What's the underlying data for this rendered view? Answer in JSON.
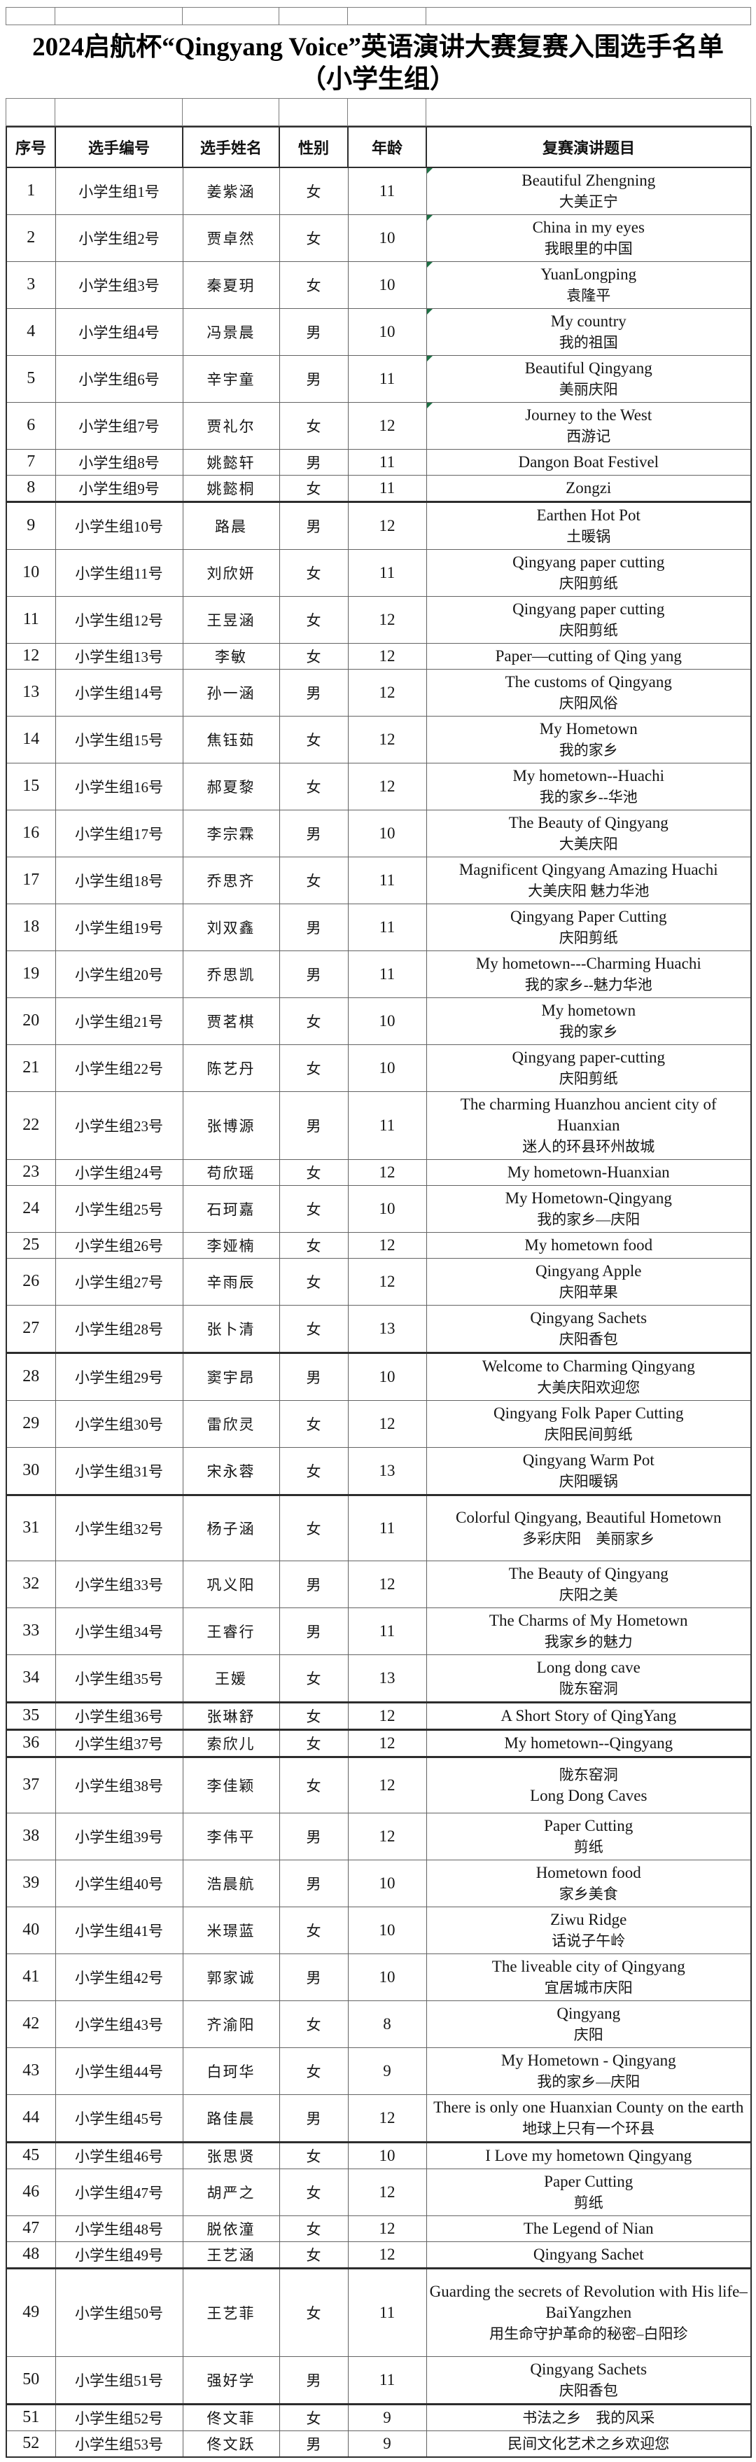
{
  "title": {
    "line1": "2024启航杯“Qingyang Voice”英语演讲大赛复赛入围选手名单",
    "line2": "（小学生组）"
  },
  "colors": {
    "marker_green": "#1e7145",
    "border_thin": "#636363",
    "border_thick": "#2e2e2e",
    "text": "#151515"
  },
  "table": {
    "headers": [
      "序号",
      "选手编号",
      "选手姓名",
      "性别",
      "年龄",
      "复赛演讲题目"
    ],
    "rows": [
      {
        "no": "1",
        "id": "小学生组1号",
        "name": "姜紫涵",
        "gender": "女",
        "age": "11",
        "topic": [
          "Beautiful Zhengning",
          "大美正宁"
        ],
        "marker": true
      },
      {
        "no": "2",
        "id": "小学生组2号",
        "name": "贾卓然",
        "gender": "女",
        "age": "10",
        "topic": [
          "China in my eyes",
          "我眼里的中国"
        ],
        "marker": true
      },
      {
        "no": "3",
        "id": "小学生组3号",
        "name": "秦夏玥",
        "gender": "女",
        "age": "10",
        "topic": [
          "YuanLongping",
          "袁隆平"
        ],
        "marker": true
      },
      {
        "no": "4",
        "id": "小学生组4号",
        "name": "冯景晨",
        "gender": "男",
        "age": "10",
        "topic": [
          "My country",
          "我的祖国"
        ],
        "marker": true
      },
      {
        "no": "5",
        "id": "小学生组6号",
        "name": "辛宇童",
        "gender": "男",
        "age": "11",
        "topic": [
          "Beautiful  Qingyang",
          "美丽庆阳"
        ],
        "marker": true
      },
      {
        "no": "6",
        "id": "小学生组7号",
        "name": "贾礼尔",
        "gender": "女",
        "age": "12",
        "topic": [
          "Journey to the West",
          "西游记"
        ],
        "marker": true
      },
      {
        "no": "7",
        "id": "小学生组8号",
        "name": "姚懿轩",
        "gender": "男",
        "age": "11",
        "topic": [
          "Dangon Boat Festivel"
        ]
      },
      {
        "no": "8",
        "id": "小学生组9号",
        "name": "姚懿桐",
        "gender": "女",
        "age": "11",
        "topic": [
          "Zongzi"
        ],
        "thick": true
      },
      {
        "no": "9",
        "id": "小学生组10号",
        "name": "路晨",
        "gender": "男",
        "age": "12",
        "topic": [
          "Earthen Hot Pot",
          "土暖锅"
        ]
      },
      {
        "no": "10",
        "id": "小学生组11号",
        "name": "刘欣妍",
        "gender": "女",
        "age": "11",
        "topic": [
          "Qingyang paper cutting",
          "庆阳剪纸"
        ]
      },
      {
        "no": "11",
        "id": "小学生组12号",
        "name": "王昱涵",
        "gender": "女",
        "age": "12",
        "topic": [
          "Qingyang paper cutting",
          "庆阳剪纸"
        ]
      },
      {
        "no": "12",
        "id": "小学生组13号",
        "name": "李敏",
        "gender": "女",
        "age": "12",
        "topic": [
          "Paper—cutting of Qing yang"
        ]
      },
      {
        "no": "13",
        "id": "小学生组14号",
        "name": "孙一涵",
        "gender": "男",
        "age": "12",
        "topic": [
          "The customs of Qingyang",
          "庆阳风俗"
        ]
      },
      {
        "no": "14",
        "id": "小学生组15号",
        "name": "焦钰茹",
        "gender": "女",
        "age": "12",
        "topic": [
          "My Hometown",
          "我的家乡"
        ]
      },
      {
        "no": "15",
        "id": "小学生组16号",
        "name": "郝夏黎",
        "gender": "女",
        "age": "12",
        "topic": [
          "My hometown--Huachi",
          "我的家乡--华池"
        ]
      },
      {
        "no": "16",
        "id": "小学生组17号",
        "name": "李宗霖",
        "gender": "男",
        "age": "10",
        "topic": [
          "The Beauty of Qingyang",
          "大美庆阳"
        ]
      },
      {
        "no": "17",
        "id": "小学生组18号",
        "name": "乔思齐",
        "gender": "女",
        "age": "11",
        "topic": [
          "Magnificent Qingyang  Amazing  Huachi",
          "大美庆阳 魅力华池"
        ]
      },
      {
        "no": "18",
        "id": "小学生组19号",
        "name": "刘双鑫",
        "gender": "男",
        "age": "11",
        "topic": [
          "Qingyang Paper Cutting",
          "庆阳剪纸"
        ]
      },
      {
        "no": "19",
        "id": "小学生组20号",
        "name": "乔思凯",
        "gender": "男",
        "age": "11",
        "topic": [
          "My hometown---Charming Huachi",
          "我的家乡--魅力华池"
        ]
      },
      {
        "no": "20",
        "id": "小学生组21号",
        "name": "贾茗棋",
        "gender": "女",
        "age": "10",
        "topic": [
          "My hometown",
          "我的家乡"
        ]
      },
      {
        "no": "21",
        "id": "小学生组22号",
        "name": "陈艺丹",
        "gender": "女",
        "age": "10",
        "topic": [
          "Qingyang paper-cutting",
          "庆阳剪纸"
        ]
      },
      {
        "no": "22",
        "id": "小学生组23号",
        "name": "张博源",
        "gender": "男",
        "age": "11",
        "topic": [
          "The charming Huanzhou ancient city of Huanxian",
          "迷人的环县环州故城"
        ]
      },
      {
        "no": "23",
        "id": "小学生组24号",
        "name": "苟欣瑶",
        "gender": "女",
        "age": "12",
        "topic": [
          "My hometown-Huanxian"
        ]
      },
      {
        "no": "24",
        "id": "小学生组25号",
        "name": "石珂嘉",
        "gender": "女",
        "age": "10",
        "topic": [
          "My Hometown-Qingyang",
          "我的家乡—庆阳"
        ]
      },
      {
        "no": "25",
        "id": "小学生组26号",
        "name": "李娅楠",
        "gender": "女",
        "age": "12",
        "topic": [
          "My hometown food"
        ]
      },
      {
        "no": "26",
        "id": "小学生组27号",
        "name": "辛雨辰",
        "gender": "女",
        "age": "12",
        "topic": [
          "Qingyang  Apple",
          "庆阳苹果"
        ]
      },
      {
        "no": "27",
        "id": "小学生组28号",
        "name": "张卜清",
        "gender": "女",
        "age": "13",
        "topic": [
          "Qingyang Sachets",
          "庆阳香包"
        ],
        "thick": true
      },
      {
        "no": "28",
        "id": "小学生组29号",
        "name": "窦宇昂",
        "gender": "男",
        "age": "10",
        "topic": [
          "Welcome to Charming Qingyang",
          "大美庆阳欢迎您"
        ]
      },
      {
        "no": "29",
        "id": "小学生组30号",
        "name": "雷欣灵",
        "gender": "女",
        "age": "12",
        "topic": [
          "Qingyang Folk Paper Cutting",
          "庆阳民间剪纸"
        ]
      },
      {
        "no": "30",
        "id": "小学生组31号",
        "name": "宋永蓉",
        "gender": "女",
        "age": "13",
        "topic": [
          "Qingyang Warm Pot",
          "庆阳暖锅"
        ],
        "thick": true
      },
      {
        "no": "31",
        "id": "小学生组32号",
        "name": "杨子涵",
        "gender": "女",
        "age": "11",
        "topic": [
          "Colorful Qingyang, Beautiful Hometown",
          "多彩庆阳　美丽家乡"
        ],
        "tall": 94
      },
      {
        "no": "32",
        "id": "小学生组33号",
        "name": "巩义阳",
        "gender": "男",
        "age": "12",
        "topic": [
          "The Beauty of Qingyang",
          "庆阳之美"
        ]
      },
      {
        "no": "33",
        "id": "小学生组34号",
        "name": "王睿行",
        "gender": "男",
        "age": "11",
        "topic": [
          "The Charms of My Hometown",
          "我家乡的魅力"
        ]
      },
      {
        "no": "34",
        "id": "小学生组35号",
        "name": "王媛",
        "gender": "女",
        "age": "13",
        "topic": [
          "Long dong cave",
          "陇东窑洞"
        ],
        "thick": true
      },
      {
        "no": "35",
        "id": "小学生组36号",
        "name": "张琳舒",
        "gender": "女",
        "age": "12",
        "topic": [
          "A Short Story of QingYang"
        ],
        "thick": true
      },
      {
        "no": "36",
        "id": "小学生组37号",
        "name": "索欣儿",
        "gender": "女",
        "age": "12",
        "topic": [
          "My hometown--Qingyang"
        ],
        "thick": true
      },
      {
        "no": "37",
        "id": "小学生组38号",
        "name": "李佳颖",
        "gender": "女",
        "age": "12",
        "topic": [
          "陇东窑洞",
          "Long Dong Caves"
        ],
        "tall": 80
      },
      {
        "no": "38",
        "id": "小学生组39号",
        "name": "李伟平",
        "gender": "男",
        "age": "12",
        "topic": [
          "Paper Cutting",
          "剪纸"
        ]
      },
      {
        "no": "39",
        "id": "小学生组40号",
        "name": "浩晨航",
        "gender": "男",
        "age": "10",
        "topic": [
          "Hometown food",
          "家乡美食"
        ]
      },
      {
        "no": "40",
        "id": "小学生组41号",
        "name": "米璟蓝",
        "gender": "女",
        "age": "10",
        "topic": [
          "Ziwu Ridge",
          "话说子午岭"
        ]
      },
      {
        "no": "41",
        "id": "小学生组42号",
        "name": "郭家诚",
        "gender": "男",
        "age": "10",
        "topic": [
          "The liveable city of Qingyang",
          "宜居城市庆阳"
        ]
      },
      {
        "no": "42",
        "id": "小学生组43号",
        "name": "齐渝阳",
        "gender": "女",
        "age": "8",
        "topic": [
          "Qingyang",
          "庆阳"
        ]
      },
      {
        "no": "43",
        "id": "小学生组44号",
        "name": "白珂华",
        "gender": "女",
        "age": "9",
        "topic": [
          "My Hometown - Qingyang",
          "我的家乡—庆阳"
        ]
      },
      {
        "no": "44",
        "id": "小学生组45号",
        "name": "路佳晨",
        "gender": "男",
        "age": "12",
        "topic": [
          "There is only one Huanxian County on the earth",
          "地球上只有一个环县"
        ],
        "thick": true
      },
      {
        "no": "45",
        "id": "小学生组46号",
        "name": "张思贤",
        "gender": "女",
        "age": "10",
        "topic": [
          "I Love my hometown Qingyang"
        ]
      },
      {
        "no": "46",
        "id": "小学生组47号",
        "name": "胡严之",
        "gender": "女",
        "age": "12",
        "topic": [
          "Paper Cutting",
          "剪纸"
        ]
      },
      {
        "no": "47",
        "id": "小学生组48号",
        "name": "脱依潼",
        "gender": "女",
        "age": "12",
        "topic": [
          "The Legend of Nian"
        ]
      },
      {
        "no": "48",
        "id": "小学生组49号",
        "name": "王艺涵",
        "gender": "女",
        "age": "12",
        "topic": [
          "Qingyang Sachet"
        ],
        "thick": true
      },
      {
        "no": "49",
        "id": "小学生组50号",
        "name": "王艺菲",
        "gender": "女",
        "age": "11",
        "topic": [
          "Guarding the secrets of Revolution with His life–BaiYangzhen",
          "用生命守护革命的秘密–白阳珍"
        ],
        "tall": 126
      },
      {
        "no": "50",
        "id": "小学生组51号",
        "name": "强好学",
        "gender": "男",
        "age": "11",
        "topic": [
          "Qingyang Sachets",
          "庆阳香包"
        ],
        "thick": true
      },
      {
        "no": "51",
        "id": "小学生组52号",
        "name": "佟文菲",
        "gender": "女",
        "age": "9",
        "topic": [
          "书法之乡　我的风采"
        ]
      },
      {
        "no": "52",
        "id": "小学生组53号",
        "name": "佟文跃",
        "gender": "男",
        "age": "9",
        "topic": [
          "民间文化艺术之乡欢迎您"
        ]
      }
    ]
  }
}
